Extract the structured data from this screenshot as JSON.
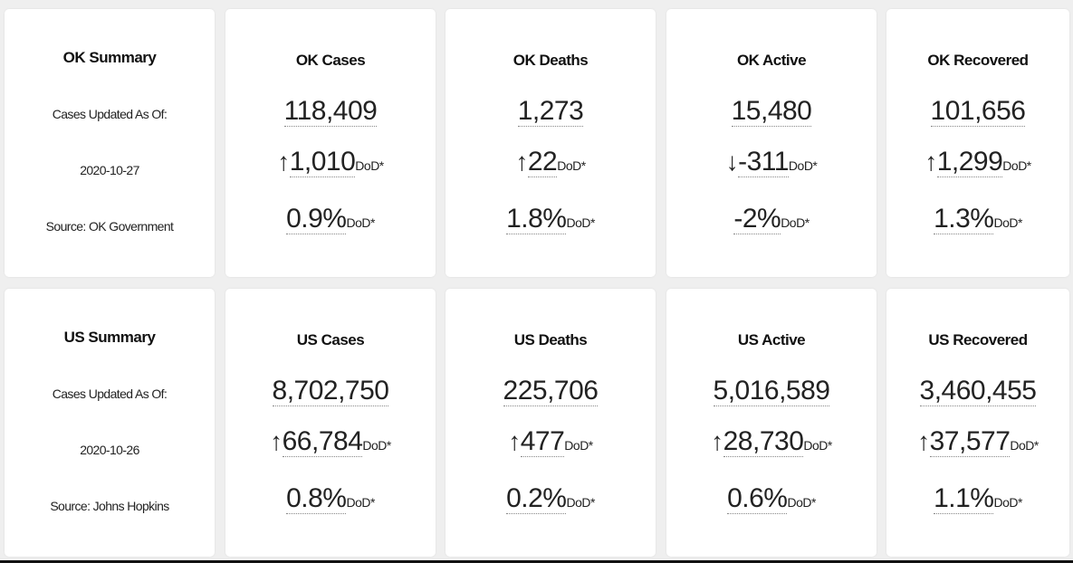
{
  "dod_label": "DoD*",
  "rows": [
    {
      "summary": {
        "title": "OK Summary",
        "updated_label": "Cases Updated As Of:",
        "date": "2020-10-27",
        "source": "Source: OK Government"
      },
      "stats": [
        {
          "title": "OK Cases",
          "value": "118,409",
          "arrow": "↑",
          "change": "1,010",
          "pct": "0.9%"
        },
        {
          "title": "OK Deaths",
          "value": "1,273",
          "arrow": "↑",
          "change": "22",
          "pct": "1.8%"
        },
        {
          "title": "OK Active",
          "value": "15,480",
          "arrow": "↓",
          "change": "-311",
          "pct": "-2%"
        },
        {
          "title": "OK Recovered",
          "value": "101,656",
          "arrow": "↑",
          "change": "1,299",
          "pct": "1.3%"
        }
      ]
    },
    {
      "summary": {
        "title": "US Summary",
        "updated_label": "Cases Updated As Of:",
        "date": "2020-10-26",
        "source": "Source: Johns Hopkins"
      },
      "stats": [
        {
          "title": "US Cases",
          "value": "8,702,750",
          "arrow": "↑",
          "change": "66,784",
          "pct": "0.8%"
        },
        {
          "title": "US Deaths",
          "value": "225,706",
          "arrow": "↑",
          "change": "477",
          "pct": "0.2%"
        },
        {
          "title": "US Active",
          "value": "5,016,589",
          "arrow": "↑",
          "change": "28,730",
          "pct": "0.6%"
        },
        {
          "title": "US Recovered",
          "value": "3,460,455",
          "arrow": "↑",
          "change": "37,577",
          "pct": "1.1%"
        }
      ]
    }
  ]
}
